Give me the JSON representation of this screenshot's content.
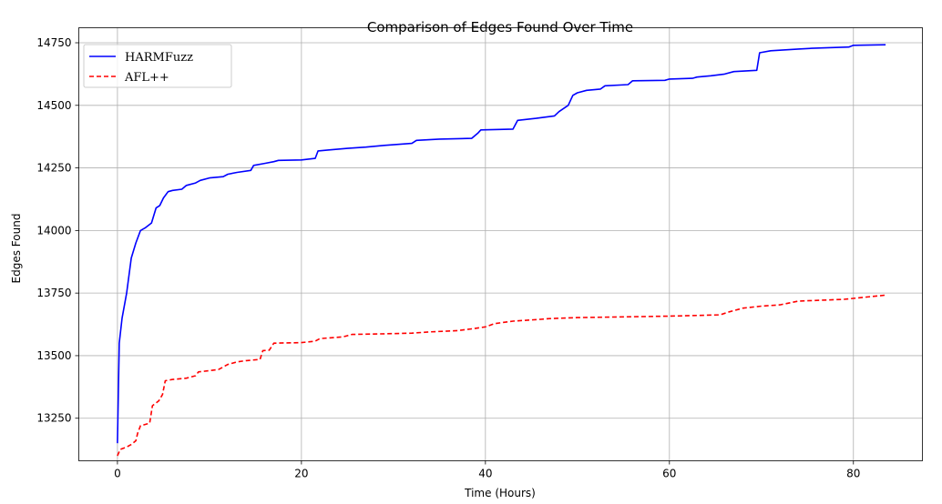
{
  "chart_data": {
    "type": "line",
    "title": "Comparison of Edges Found Over Time",
    "xlabel": "Time (Hours)",
    "ylabel": "Edges Found",
    "xlim": [
      -4.2,
      87.5
    ],
    "ylim": [
      13080,
      14810
    ],
    "xticks": [
      0,
      20,
      40,
      60,
      80
    ],
    "yticks": [
      13250,
      13500,
      13750,
      14000,
      14250,
      14500,
      14750
    ],
    "grid": true,
    "legend_position": "top-left",
    "series": [
      {
        "name": "HARMFuzz",
        "color": "#0000ff",
        "style": "solid",
        "points": [
          [
            0,
            13150
          ],
          [
            0.2,
            13550
          ],
          [
            0.5,
            13650
          ],
          [
            1,
            13750
          ],
          [
            1.5,
            13890
          ],
          [
            2,
            13950
          ],
          [
            2.5,
            14000
          ],
          [
            3,
            14010
          ],
          [
            3.7,
            14030
          ],
          [
            4.2,
            14090
          ],
          [
            4.6,
            14100
          ],
          [
            5,
            14130
          ],
          [
            5.5,
            14155
          ],
          [
            6,
            14160
          ],
          [
            7,
            14165
          ],
          [
            7.5,
            14180
          ],
          [
            8.5,
            14190
          ],
          [
            9,
            14200
          ],
          [
            10,
            14210
          ],
          [
            11.5,
            14215
          ],
          [
            12,
            14225
          ],
          [
            13,
            14232
          ],
          [
            14.5,
            14240
          ],
          [
            14.8,
            14260
          ],
          [
            16,
            14268
          ],
          [
            17,
            14275
          ],
          [
            17.5,
            14280
          ],
          [
            20,
            14282
          ],
          [
            21.5,
            14288
          ],
          [
            21.8,
            14318
          ],
          [
            23,
            14322
          ],
          [
            25,
            14328
          ],
          [
            27,
            14333
          ],
          [
            29,
            14340
          ],
          [
            32,
            14348
          ],
          [
            32.5,
            14360
          ],
          [
            35,
            14365
          ],
          [
            38.5,
            14368
          ],
          [
            39.2,
            14390
          ],
          [
            39.5,
            14402
          ],
          [
            43,
            14405
          ],
          [
            43.5,
            14440
          ],
          [
            45.5,
            14448
          ],
          [
            47.5,
            14458
          ],
          [
            48,
            14475
          ],
          [
            49,
            14500
          ],
          [
            49.5,
            14540
          ],
          [
            50,
            14550
          ],
          [
            51,
            14560
          ],
          [
            52.5,
            14565
          ],
          [
            53,
            14578
          ],
          [
            55.5,
            14583
          ],
          [
            56,
            14598
          ],
          [
            59.5,
            14600
          ],
          [
            60,
            14605
          ],
          [
            62.5,
            14608
          ],
          [
            63,
            14613
          ],
          [
            64.5,
            14618
          ],
          [
            66,
            14625
          ],
          [
            67,
            14635
          ],
          [
            69.5,
            14640
          ],
          [
            69.8,
            14710
          ],
          [
            71,
            14718
          ],
          [
            74,
            14725
          ],
          [
            75.5,
            14728
          ],
          [
            79.5,
            14733
          ],
          [
            80,
            14740
          ],
          [
            83.5,
            14742
          ]
        ]
      },
      {
        "name": "AFL++",
        "color": "#ff0000",
        "style": "dashed",
        "points": [
          [
            0,
            13100
          ],
          [
            0.3,
            13125
          ],
          [
            1,
            13135
          ],
          [
            1.5,
            13145
          ],
          [
            2,
            13160
          ],
          [
            2.2,
            13190
          ],
          [
            2.5,
            13220
          ],
          [
            3.5,
            13230
          ],
          [
            3.8,
            13300
          ],
          [
            4.5,
            13320
          ],
          [
            4.9,
            13345
          ],
          [
            5.2,
            13400
          ],
          [
            6,
            13405
          ],
          [
            7.5,
            13410
          ],
          [
            8.5,
            13420
          ],
          [
            8.8,
            13435
          ],
          [
            10,
            13440
          ],
          [
            11,
            13445
          ],
          [
            12,
            13465
          ],
          [
            13,
            13475
          ],
          [
            14,
            13480
          ],
          [
            15.5,
            13485
          ],
          [
            15.8,
            13520
          ],
          [
            16.5,
            13522
          ],
          [
            17,
            13550
          ],
          [
            20,
            13552
          ],
          [
            21.5,
            13558
          ],
          [
            22,
            13568
          ],
          [
            24.5,
            13575
          ],
          [
            25.5,
            13585
          ],
          [
            30,
            13588
          ],
          [
            32,
            13590
          ],
          [
            34,
            13595
          ],
          [
            37,
            13600
          ],
          [
            38.5,
            13607
          ],
          [
            40,
            13615
          ],
          [
            41,
            13628
          ],
          [
            43,
            13638
          ],
          [
            46,
            13645
          ],
          [
            47,
            13648
          ],
          [
            50,
            13652
          ],
          [
            55,
            13655
          ],
          [
            60,
            13658
          ],
          [
            65.5,
            13663
          ],
          [
            66.5,
            13675
          ],
          [
            68,
            13690
          ],
          [
            70,
            13698
          ],
          [
            72,
            13703
          ],
          [
            74,
            13718
          ],
          [
            79,
            13725
          ],
          [
            83.5,
            13742
          ]
        ]
      }
    ]
  }
}
